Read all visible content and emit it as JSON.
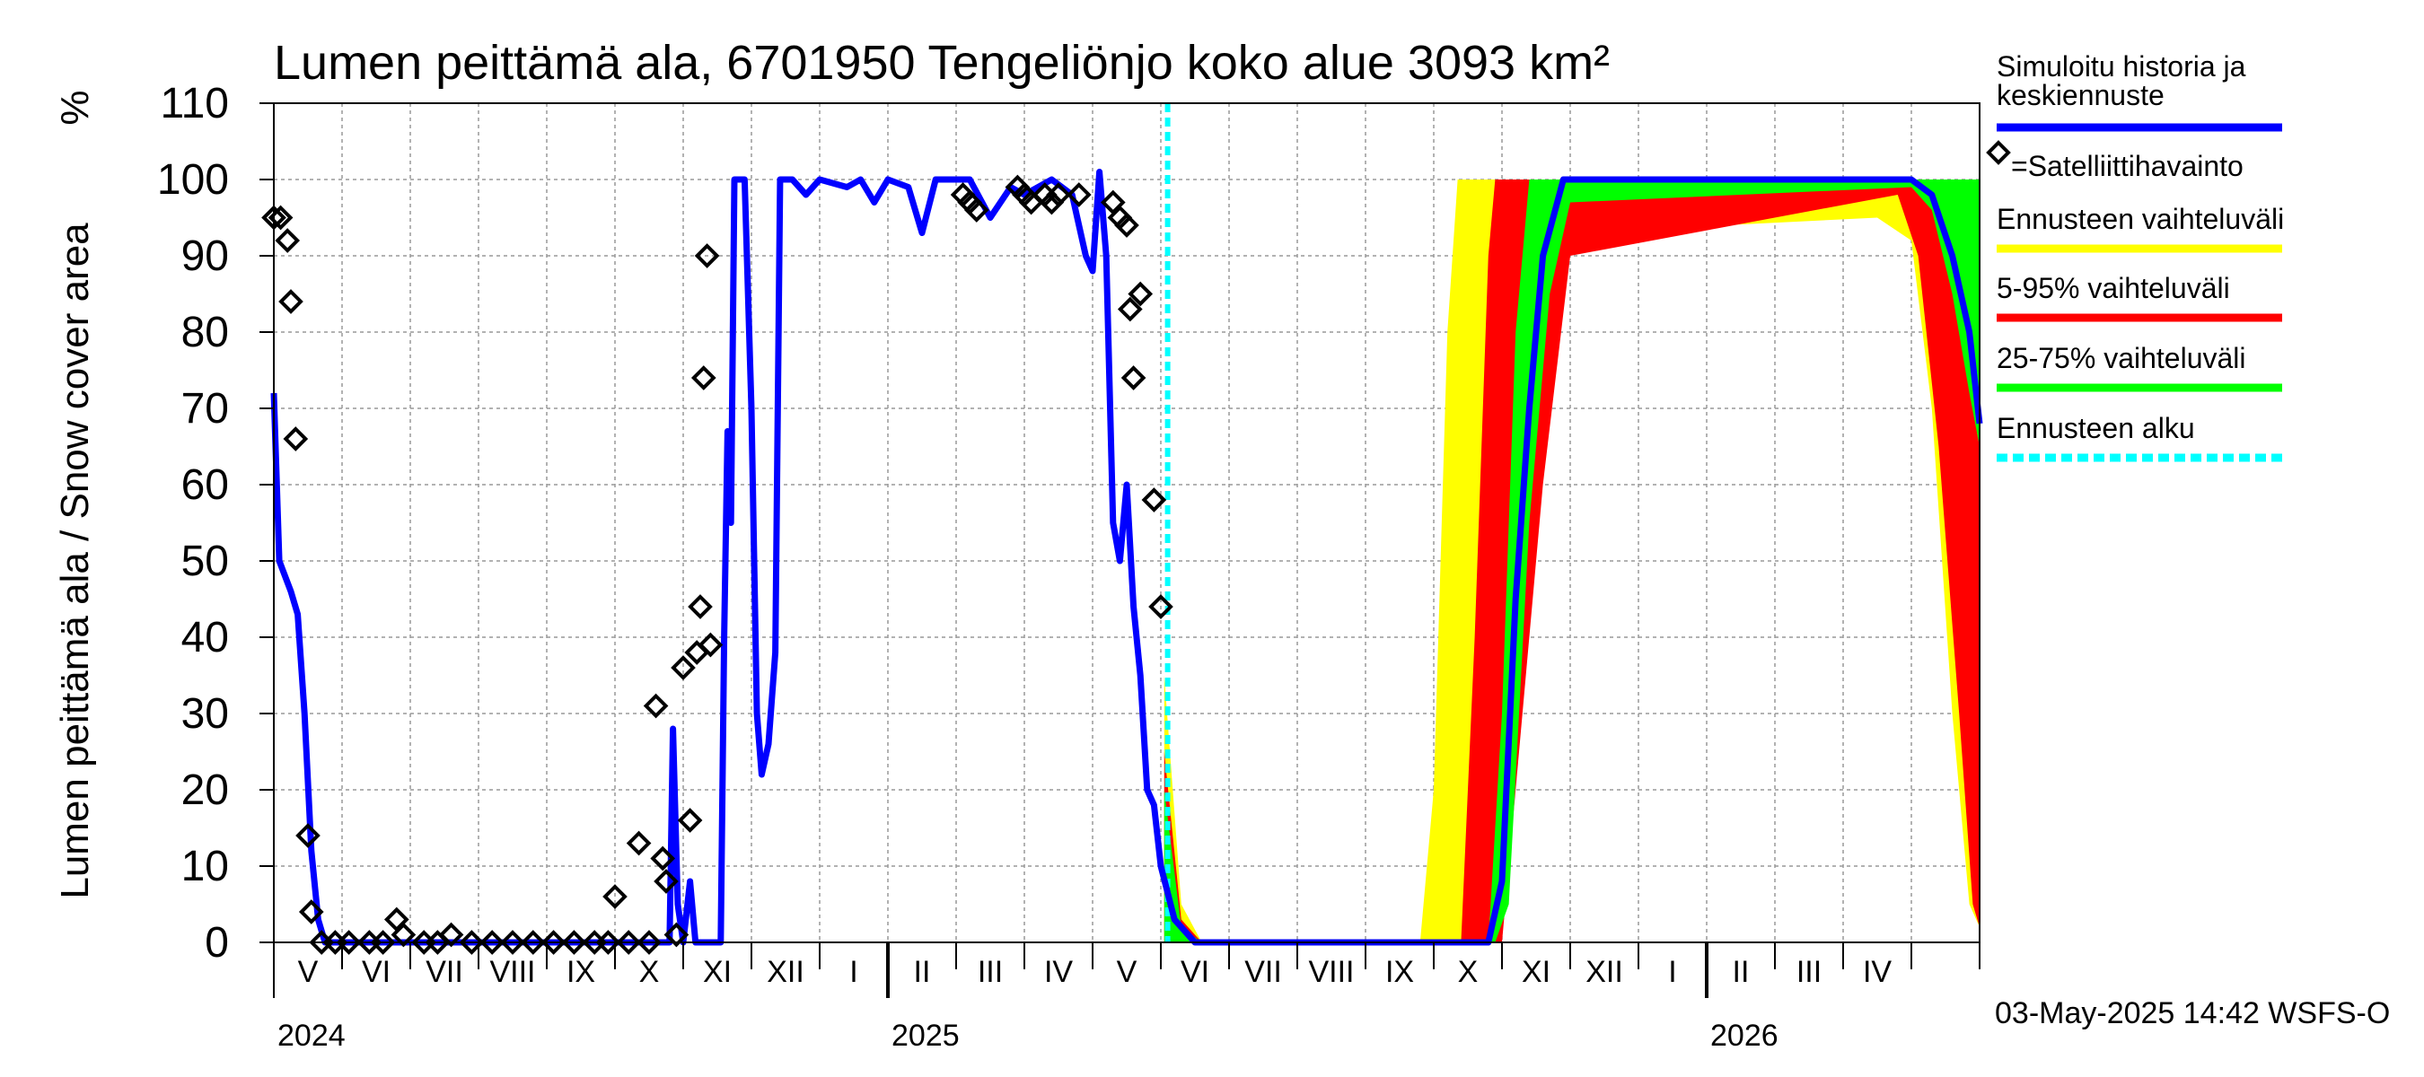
{
  "chart_data": {
    "type": "area",
    "title": "Lumen peittämä ala, 6701950 Tengeliönjo koko alue 3093 km²",
    "ylabel": "Lumen peittämä ala / Snow cover area",
    "yunit": "%",
    "ylim": [
      0,
      110
    ],
    "yticks": [
      0,
      10,
      20,
      30,
      40,
      50,
      60,
      70,
      80,
      90,
      100,
      110
    ],
    "grid": true,
    "x_unit": "months since 2024-04-01",
    "xlim": [
      0,
      25
    ],
    "month_labels": [
      {
        "label": "V",
        "x": 1
      },
      {
        "label": "VI",
        "x": 2
      },
      {
        "label": "VII",
        "x": 3
      },
      {
        "label": "VIII",
        "x": 4
      },
      {
        "label": "IX",
        "x": 5
      },
      {
        "label": "X",
        "x": 6
      },
      {
        "label": "XI",
        "x": 7
      },
      {
        "label": "XII",
        "x": 8
      },
      {
        "label": "I",
        "x": 9
      },
      {
        "label": "II",
        "x": 10
      },
      {
        "label": "III",
        "x": 11
      },
      {
        "label": "IV",
        "x": 12
      },
      {
        "label": "V",
        "x": 13
      },
      {
        "label": "VI",
        "x": 14
      },
      {
        "label": "VII",
        "x": 15
      },
      {
        "label": "VIII",
        "x": 16
      },
      {
        "label": "IX",
        "x": 17
      },
      {
        "label": "X",
        "x": 18
      },
      {
        "label": "XI",
        "x": 19
      },
      {
        "label": "XII",
        "x": 20
      },
      {
        "label": "I",
        "x": 21
      },
      {
        "label": "II",
        "x": 22
      },
      {
        "label": "III",
        "x": 23
      },
      {
        "label": "IV",
        "x": 24
      }
    ],
    "year_labels": [
      {
        "label": "2024",
        "x": 0
      },
      {
        "label": "2025",
        "x": 9
      },
      {
        "label": "2026",
        "x": 21
      }
    ],
    "year_boundaries": [
      9,
      21
    ],
    "forecast_start": 13.1,
    "series": [
      {
        "name": "Simuloitu historia ja keskiennuste",
        "color": "#0000ff",
        "points": [
          [
            0.0,
            72
          ],
          [
            0.08,
            50
          ],
          [
            0.25,
            46
          ],
          [
            0.35,
            43
          ],
          [
            0.45,
            30
          ],
          [
            0.55,
            12
          ],
          [
            0.65,
            3
          ],
          [
            0.75,
            0
          ],
          [
            5.8,
            0
          ],
          [
            5.85,
            28
          ],
          [
            5.92,
            5
          ],
          [
            6.0,
            0
          ],
          [
            6.1,
            8
          ],
          [
            6.18,
            0
          ],
          [
            6.55,
            0
          ],
          [
            6.6,
            40
          ],
          [
            6.65,
            67
          ],
          [
            6.7,
            55
          ],
          [
            6.75,
            100
          ],
          [
            6.9,
            100
          ],
          [
            7.0,
            70
          ],
          [
            7.08,
            30
          ],
          [
            7.15,
            22
          ],
          [
            7.25,
            26
          ],
          [
            7.35,
            38
          ],
          [
            7.42,
            100
          ],
          [
            7.6,
            100
          ],
          [
            7.8,
            98
          ],
          [
            8.0,
            100
          ],
          [
            8.4,
            99
          ],
          [
            8.6,
            100
          ],
          [
            8.8,
            97
          ],
          [
            9.0,
            100
          ],
          [
            9.3,
            99
          ],
          [
            9.5,
            93
          ],
          [
            9.7,
            100
          ],
          [
            10.2,
            100
          ],
          [
            10.5,
            95
          ],
          [
            10.8,
            99
          ],
          [
            11.0,
            98
          ],
          [
            11.4,
            100
          ],
          [
            11.7,
            98
          ],
          [
            11.9,
            90
          ],
          [
            12.0,
            88
          ],
          [
            12.1,
            101
          ],
          [
            12.2,
            90
          ],
          [
            12.3,
            55
          ],
          [
            12.4,
            50
          ],
          [
            12.5,
            60
          ],
          [
            12.6,
            44
          ],
          [
            12.7,
            35
          ],
          [
            12.8,
            20
          ],
          [
            12.9,
            18
          ],
          [
            13.0,
            10
          ],
          [
            13.2,
            3
          ],
          [
            13.5,
            0
          ],
          [
            17.8,
            0
          ],
          [
            18.0,
            8
          ],
          [
            18.2,
            45
          ],
          [
            18.4,
            70
          ],
          [
            18.6,
            90
          ],
          [
            18.9,
            100
          ],
          [
            24.0,
            100
          ],
          [
            24.3,
            98
          ],
          [
            24.6,
            90
          ],
          [
            24.85,
            80
          ],
          [
            25.0,
            68
          ]
        ]
      }
    ],
    "satellite_points": [
      [
        0.0,
        95
      ],
      [
        0.1,
        95
      ],
      [
        0.2,
        92
      ],
      [
        0.25,
        84
      ],
      [
        0.32,
        66
      ],
      [
        0.5,
        14
      ],
      [
        0.55,
        4
      ],
      [
        0.7,
        0
      ],
      [
        0.9,
        0
      ],
      [
        1.1,
        0
      ],
      [
        1.4,
        0
      ],
      [
        1.6,
        0
      ],
      [
        1.8,
        3
      ],
      [
        1.9,
        1
      ],
      [
        2.2,
        0
      ],
      [
        2.4,
        0
      ],
      [
        2.6,
        1
      ],
      [
        2.9,
        0
      ],
      [
        3.2,
        0
      ],
      [
        3.5,
        0
      ],
      [
        3.8,
        0
      ],
      [
        4.1,
        0
      ],
      [
        4.4,
        0
      ],
      [
        4.7,
        0
      ],
      [
        4.9,
        0
      ],
      [
        5.0,
        6
      ],
      [
        5.2,
        0
      ],
      [
        5.35,
        13
      ],
      [
        5.5,
        0
      ],
      [
        5.6,
        31
      ],
      [
        5.7,
        11
      ],
      [
        5.75,
        8
      ],
      [
        5.9,
        1
      ],
      [
        6.0,
        36
      ],
      [
        6.1,
        16
      ],
      [
        6.2,
        38
      ],
      [
        6.25,
        44
      ],
      [
        6.3,
        74
      ],
      [
        6.35,
        90
      ],
      [
        6.4,
        39
      ],
      [
        10.1,
        98
      ],
      [
        10.2,
        97
      ],
      [
        10.3,
        96
      ],
      [
        10.9,
        99
      ],
      [
        11.0,
        98
      ],
      [
        11.1,
        97
      ],
      [
        11.3,
        98
      ],
      [
        11.4,
        97
      ],
      [
        11.5,
        98
      ],
      [
        11.8,
        98
      ],
      [
        12.3,
        97
      ],
      [
        12.4,
        95
      ],
      [
        12.5,
        94
      ],
      [
        12.55,
        83
      ],
      [
        12.6,
        74
      ],
      [
        12.7,
        85
      ],
      [
        12.9,
        58
      ],
      [
        13.0,
        44
      ]
    ],
    "bands": [
      {
        "name": "Ennusteen vaihteluväli",
        "color": "#ffff00",
        "lower": [
          [
            13.05,
            0
          ],
          [
            17.6,
            0
          ],
          [
            17.8,
            0
          ],
          [
            18.2,
            30
          ],
          [
            18.5,
            80
          ],
          [
            19.0,
            93
          ],
          [
            23.5,
            95
          ],
          [
            24.0,
            92
          ],
          [
            24.3,
            70
          ],
          [
            24.6,
            30
          ],
          [
            24.85,
            5
          ],
          [
            25.0,
            2
          ]
        ],
        "upper": [
          [
            13.05,
            35
          ],
          [
            13.3,
            5
          ],
          [
            13.6,
            0
          ],
          [
            16.8,
            0
          ],
          [
            17.0,
            20
          ],
          [
            17.2,
            80
          ],
          [
            17.35,
            100
          ],
          [
            24.8,
            100
          ],
          [
            25.0,
            100
          ]
        ]
      },
      {
        "name": "5-95% vaihteluväli",
        "color": "#ff0000",
        "lower": [
          [
            13.05,
            0
          ],
          [
            17.8,
            0
          ],
          [
            18.0,
            0
          ],
          [
            18.2,
            20
          ],
          [
            18.6,
            60
          ],
          [
            19.0,
            90
          ],
          [
            23.8,
            98
          ],
          [
            24.1,
            90
          ],
          [
            24.4,
            65
          ],
          [
            24.7,
            30
          ],
          [
            24.9,
            5
          ],
          [
            25.0,
            2
          ]
        ],
        "upper": [
          [
            13.05,
            25
          ],
          [
            13.3,
            3
          ],
          [
            13.6,
            0
          ],
          [
            17.4,
            0
          ],
          [
            17.6,
            40
          ],
          [
            17.8,
            90
          ],
          [
            17.9,
            100
          ],
          [
            25.0,
            100
          ]
        ]
      },
      {
        "name": "25-75% vaihteluväli",
        "color": "#00ff00",
        "lower": [
          [
            13.05,
            0
          ],
          [
            17.9,
            0
          ],
          [
            18.1,
            5
          ],
          [
            18.4,
            55
          ],
          [
            18.7,
            85
          ],
          [
            19.0,
            97
          ],
          [
            24.0,
            99
          ],
          [
            24.3,
            96
          ],
          [
            24.6,
            85
          ],
          [
            24.85,
            72
          ],
          [
            25.0,
            65
          ]
        ],
        "upper": [
          [
            13.05,
            20
          ],
          [
            13.3,
            2
          ],
          [
            13.6,
            0
          ],
          [
            17.8,
            0
          ],
          [
            18.0,
            30
          ],
          [
            18.2,
            80
          ],
          [
            18.4,
            100
          ],
          [
            25.0,
            100
          ]
        ]
      }
    ],
    "legend": [
      {
        "label": "Simuloitu historia ja",
        "label2": "keskiennuste",
        "color": "#0000ff",
        "kind": "line"
      },
      {
        "label": "=Satelliittihavainto",
        "color": "#000000",
        "kind": "diamond"
      },
      {
        "label": "Ennusteen vaihteluväli",
        "color": "#ffff00",
        "kind": "line"
      },
      {
        "label": "5-95% vaihteluväli",
        "color": "#ff0000",
        "kind": "line"
      },
      {
        "label": "25-75% vaihteluväli",
        "color": "#00ff00",
        "kind": "line"
      },
      {
        "label": "Ennusteen alku",
        "color": "#00ffff",
        "kind": "dashed"
      }
    ],
    "legend_position": "right",
    "timestamp": "03-May-2025 14:42 WSFS-O"
  }
}
